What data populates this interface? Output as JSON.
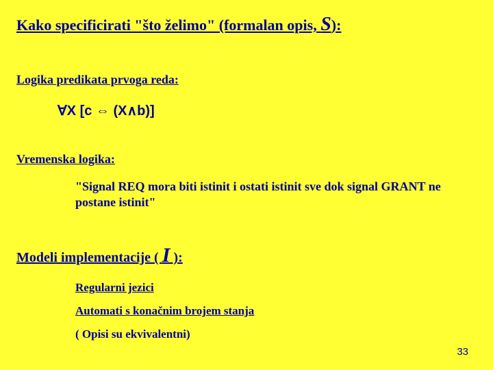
{
  "colors": {
    "background": "#ffff33",
    "text": "#000099"
  },
  "title": {
    "before_s": "Kako specificirati \"što želimo\" (formalan opis, ",
    "s": "S",
    "after_s": "):"
  },
  "section1": {
    "heading": "Logika predikata prvoga reda:",
    "formula": "∀X [c ⇔ (X∧b)]"
  },
  "section2": {
    "heading": "Vremenska logika:",
    "quote": "\"Signal REQ mora biti istinit i ostati istinit sve dok signal GRANT ne postane istinit\""
  },
  "section3": {
    "heading_before_i": "Modeli implementacije ( ",
    "i": "I",
    "heading_after_i": " ):",
    "item1": "Regularni jezici",
    "item2": "Automati s konačnim brojem stanja",
    "note": "( Opisi su ekvivalentni)"
  },
  "page_number": "33"
}
